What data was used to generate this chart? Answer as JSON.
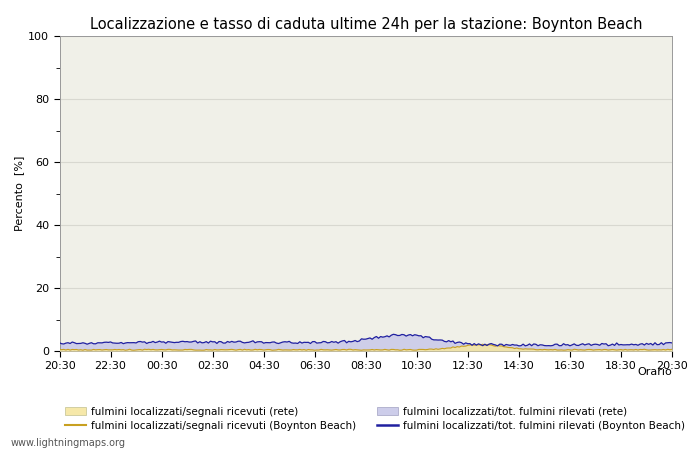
{
  "title": "Localizzazione e tasso di caduta ultime 24h per la stazione: Boynton Beach",
  "ylabel": "Percento  [%]",
  "xlabel": "Orario",
  "ylim": [
    0,
    100
  ],
  "yticks_major": [
    0,
    20,
    40,
    60,
    80,
    100
  ],
  "yticks_minor": [
    10,
    30,
    50,
    70,
    90
  ],
  "x_labels": [
    "20:30",
    "22:30",
    "00:30",
    "02:30",
    "04:30",
    "06:30",
    "08:30",
    "10:30",
    "12:30",
    "14:30",
    "16:30",
    "18:30",
    "20:30"
  ],
  "n_points": 289,
  "background_color": "#ffffff",
  "plot_bg_color": "#f0f0e8",
  "grid_color": "#d8d8d0",
  "fill_rete_color": "#f5e6a0",
  "fill_rete_alpha": 0.85,
  "fill_local_color": "#c8c8e8",
  "fill_local_alpha": 0.85,
  "line_rete_color": "#c8a020",
  "line_local_color": "#2020a0",
  "watermark": "www.lightningmaps.org",
  "legend_labels": [
    "fulmini localizzati/segnali ricevuti (rete)",
    "fulmini localizzati/tot. fulmini rilevati (rete)",
    "fulmini localizzati/segnali ricevuti (Boynton Beach)",
    "fulmini localizzati/tot. fulmini rilevati (Boynton Beach)"
  ],
  "title_fontsize": 10.5,
  "tick_fontsize": 8,
  "legend_fontsize": 7.5,
  "axis_label_fontsize": 8
}
